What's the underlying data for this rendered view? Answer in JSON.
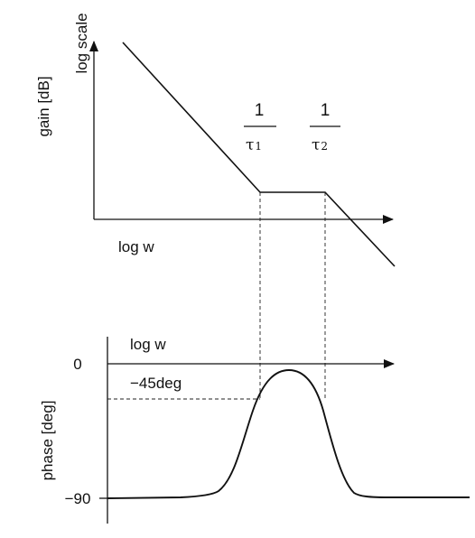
{
  "gain_plot": {
    "y_axis_label": "gain [dB]",
    "y_axis_scale": "log scale",
    "x_axis_label": "log w",
    "break1": {
      "numerator": "1",
      "denominator_symbol": "τ",
      "denominator_subscript": "1"
    },
    "break2": {
      "numerator": "1",
      "denominator_symbol": "τ",
      "denominator_subscript": "2"
    }
  },
  "phase_plot": {
    "y_axis_label": "phase [deg]",
    "x_axis_label": "log w",
    "tick_zero": "0",
    "tick_minus90": "−90",
    "annotation_minus45": "−45deg"
  },
  "colors": {
    "ink": "#111111",
    "background": "#ffffff"
  }
}
